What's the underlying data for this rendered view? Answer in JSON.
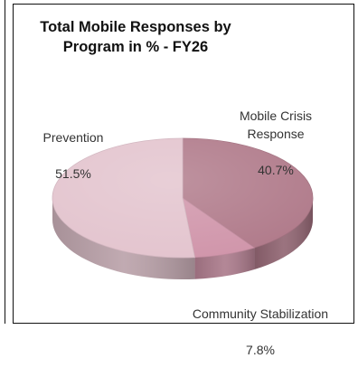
{
  "chart_data": {
    "type": "pie",
    "title": "Total Mobile Responses by\nProgram in % - FY26",
    "series": [
      {
        "categories": [
          "Mobile Crisis Response",
          "Community Stabilization",
          "Prevention"
        ],
        "values": [
          40.7,
          7.8,
          51.5
        ]
      }
    ],
    "labels": {
      "mobile_crisis": {
        "name": "Mobile Crisis\nResponse",
        "value": "40.7%"
      },
      "community": {
        "name": "Community Stabilization",
        "value": "7.8%"
      },
      "prevention": {
        "name": "Prevention",
        "value": "51.5%"
      }
    },
    "colors": {
      "mobile_crisis": "#b07a8a",
      "community": "#d095aa",
      "prevention": "#e3c4ce"
    },
    "legend": "none",
    "style": "3d-pie"
  }
}
